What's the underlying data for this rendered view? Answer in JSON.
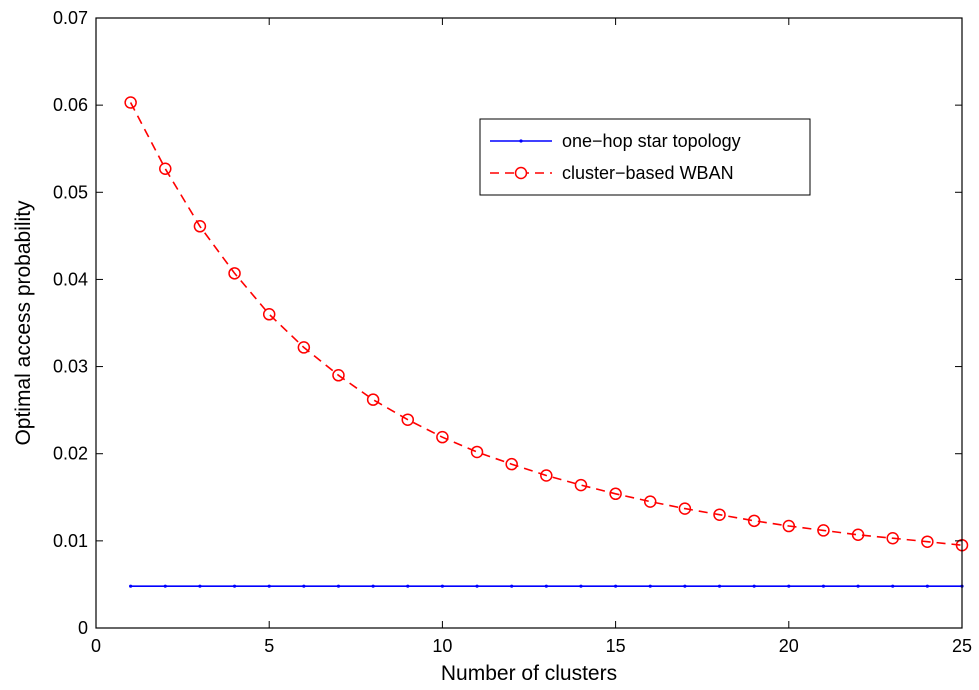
{
  "chart_data": {
    "type": "line",
    "xlabel": "Number of clusters",
    "ylabel": "Optimal access probability",
    "xlim": [
      0,
      25
    ],
    "ylim": [
      0,
      0.07
    ],
    "xticks": [
      0,
      5,
      10,
      15,
      20,
      25
    ],
    "yticks": [
      0,
      0.01,
      0.02,
      0.03,
      0.04,
      0.05,
      0.06,
      0.07
    ],
    "xtick_labels": [
      "0",
      "5",
      "10",
      "15",
      "20",
      "25"
    ],
    "ytick_labels": [
      "0",
      "0.01",
      "0.02",
      "0.03",
      "0.04",
      "0.05",
      "0.06",
      "0.07"
    ],
    "grid": false,
    "legend_position": "top-right",
    "x": [
      1,
      2,
      3,
      4,
      5,
      6,
      7,
      8,
      9,
      10,
      11,
      12,
      13,
      14,
      15,
      16,
      17,
      18,
      19,
      20,
      21,
      22,
      23,
      24,
      25
    ],
    "series": [
      {
        "name": "one−hop star topology",
        "color": "#0000ff",
        "style": "solid-dot-marker",
        "values": [
          0.0048,
          0.0048,
          0.0048,
          0.0048,
          0.0048,
          0.0048,
          0.0048,
          0.0048,
          0.0048,
          0.0048,
          0.0048,
          0.0048,
          0.0048,
          0.0048,
          0.0048,
          0.0048,
          0.0048,
          0.0048,
          0.0048,
          0.0048,
          0.0048,
          0.0048,
          0.0048,
          0.0048,
          0.0048
        ]
      },
      {
        "name": "cluster−based WBAN",
        "color": "#ff0000",
        "style": "dashed-circle-marker",
        "values": [
          0.0603,
          0.0527,
          0.0461,
          0.0407,
          0.036,
          0.0322,
          0.029,
          0.0262,
          0.0239,
          0.0219,
          0.0202,
          0.0188,
          0.0175,
          0.0164,
          0.0154,
          0.0145,
          0.0137,
          0.013,
          0.0123,
          0.0117,
          0.0112,
          0.0107,
          0.0103,
          0.0099,
          0.0095
        ]
      }
    ]
  }
}
